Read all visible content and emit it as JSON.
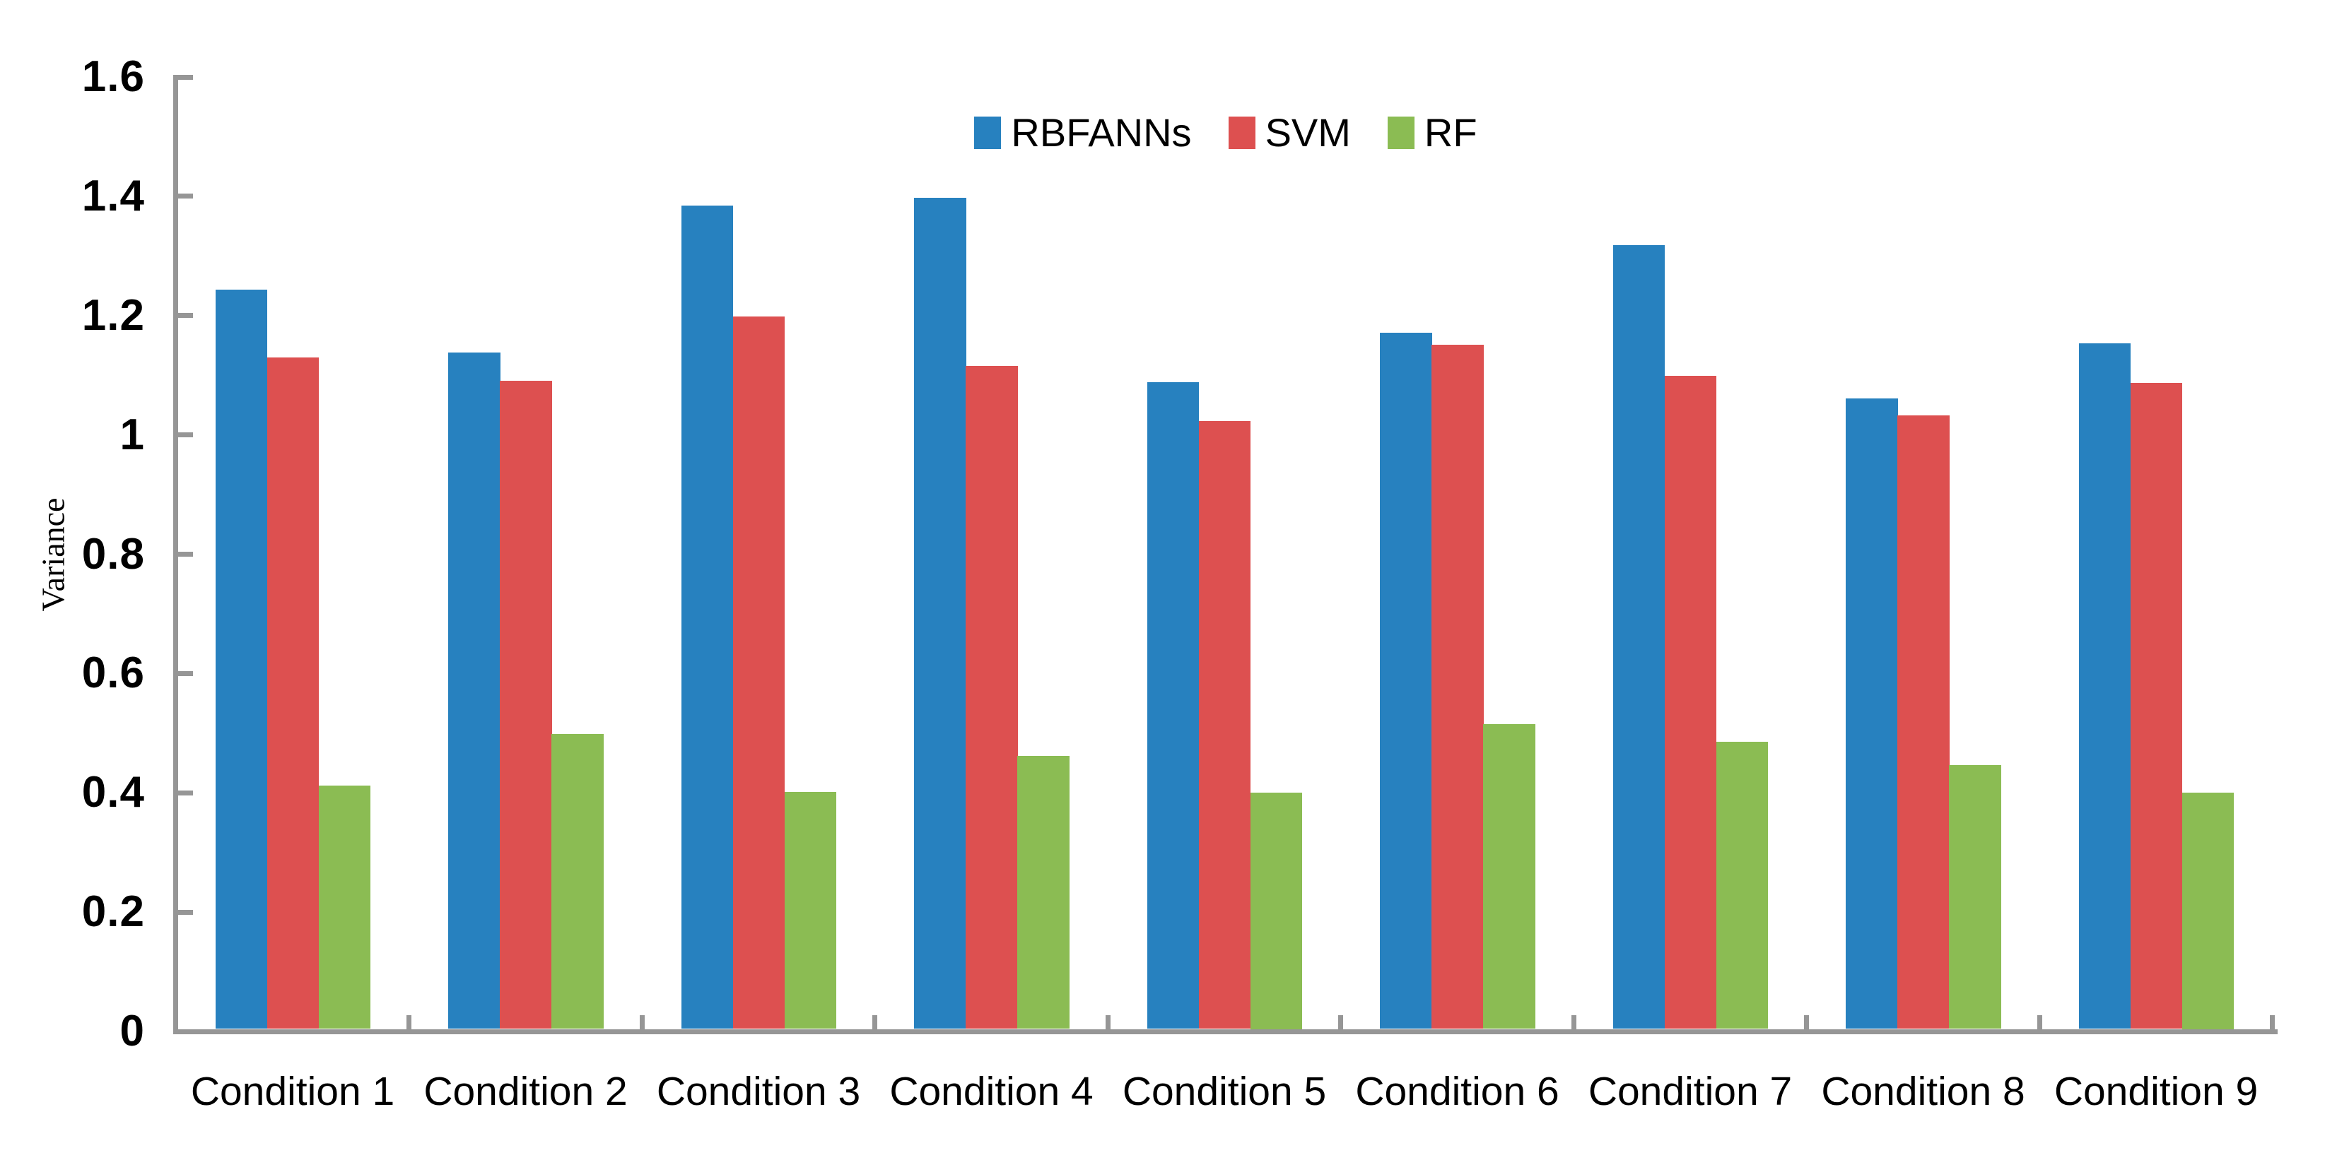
{
  "chart_data": {
    "type": "bar",
    "title": "",
    "xlabel": "",
    "ylabel": "Variance",
    "categories": [
      "Condition 1",
      "Condition 2",
      "Condition 3",
      "Condition 4",
      "Condition 5",
      "Condition 6",
      "Condition 7",
      "Condition 8",
      "Condition 9"
    ],
    "series": [
      {
        "name": "RBFANNs",
        "color": "#2781BF",
        "values": [
          1.243,
          1.138,
          1.385,
          1.397,
          1.088,
          1.171,
          1.318,
          1.061,
          1.154
        ]
      },
      {
        "name": "SVM",
        "color": "#DD5050",
        "values": [
          1.13,
          1.091,
          1.198,
          1.116,
          1.023,
          1.151,
          1.099,
          1.033,
          1.087
        ]
      },
      {
        "name": "RF",
        "color": "#8BBC53",
        "values": [
          0.412,
          0.499,
          0.401,
          0.462,
          0.4,
          0.515,
          0.485,
          0.447,
          0.4
        ]
      }
    ],
    "ylim": [
      0,
      1.6
    ],
    "ytick_step": 0.2,
    "ytick_labels": [
      "0",
      "0.2",
      "0.4",
      "0.6",
      "0.8",
      "1",
      "1.2",
      "1.4",
      "1.6"
    ],
    "legend_position": "top-center",
    "grid": false,
    "axis_color": "#969696",
    "text_color": "#000000",
    "tick_style": "inside"
  }
}
